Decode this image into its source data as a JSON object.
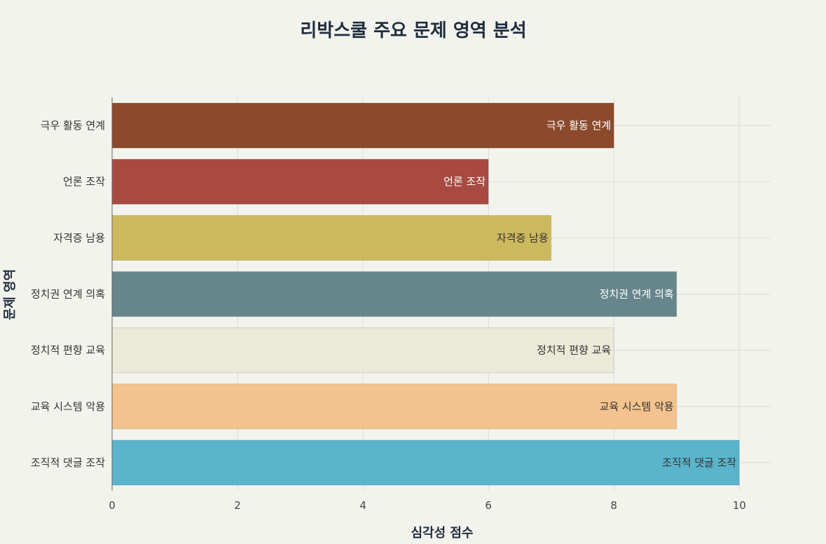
{
  "chart_data": {
    "type": "bar",
    "orientation": "horizontal",
    "title": "리박스쿨 주요 문제 영역 분석",
    "xlabel": "심각성 점수",
    "ylabel": "문제 영역",
    "xlim": [
      0,
      10.5
    ],
    "xticks": [
      0,
      2,
      4,
      6,
      8,
      10
    ],
    "grid": true,
    "categories": [
      "극우 활동 연계",
      "언론 조작",
      "자격증 남용",
      "정치권 연계 의혹",
      "정치적 편향 교육",
      "교육 시스템 악용",
      "조직적 댓글 조작"
    ],
    "values": [
      8,
      6,
      7,
      9,
      8,
      9,
      10
    ],
    "colors": [
      "#8b4a2b",
      "#a84a42",
      "#cdb95d",
      "#67868b",
      "#ebe9d8",
      "#f3c28e",
      "#5ab4cb"
    ],
    "label_colors": [
      "#ffffff",
      "#ffffff",
      "#333333",
      "#ffffff",
      "#333333",
      "#333333",
      "#333333"
    ]
  }
}
